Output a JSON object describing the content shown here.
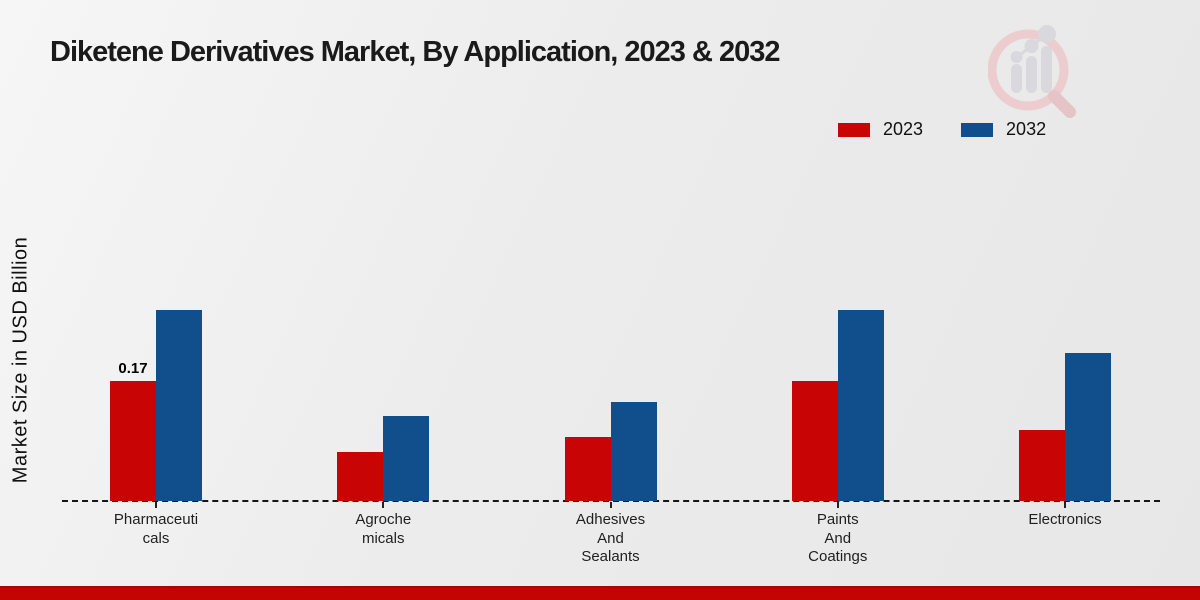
{
  "title": "Diketene Derivatives Market, By Application, 2023 & 2032",
  "y_axis_label": "Market Size in USD Billion",
  "watermark_icon": "magnifier-bar-chart-logo",
  "colors": {
    "series_2023": "#c90404",
    "series_2032": "#114e8c",
    "footer_strip": "#c40303",
    "background": "#ededed",
    "text": "#1a1a1a"
  },
  "chart_data": {
    "type": "bar",
    "title": "Diketene Derivatives Market, By Application, 2023 & 2032",
    "xlabel": "",
    "ylabel": "Market Size in USD Billion",
    "categories": [
      "Pharmaceuticals",
      "Agrochemicals",
      "Adhesives And Sealants",
      "Paints And Coatings",
      "Electronics"
    ],
    "categories_display": [
      "Pharmaceuti\ncals",
      "Agroche\nmicals",
      "Adhesives\nAnd\nSealants",
      "Paints\nAnd\nCoatings",
      "Electronics"
    ],
    "series": [
      {
        "name": "2023",
        "color": "#c90404",
        "values": [
          0.17,
          0.07,
          0.09,
          0.17,
          0.1
        ]
      },
      {
        "name": "2032",
        "color": "#114e8c",
        "values": [
          0.27,
          0.12,
          0.14,
          0.27,
          0.21
        ]
      }
    ],
    "value_labels": [
      {
        "series_index": 0,
        "category_index": 0,
        "text": "0.17"
      }
    ],
    "ylim": [
      0,
      0.3
    ],
    "grid": false,
    "baseline_style": "dashed",
    "legend_position": "top-right"
  }
}
